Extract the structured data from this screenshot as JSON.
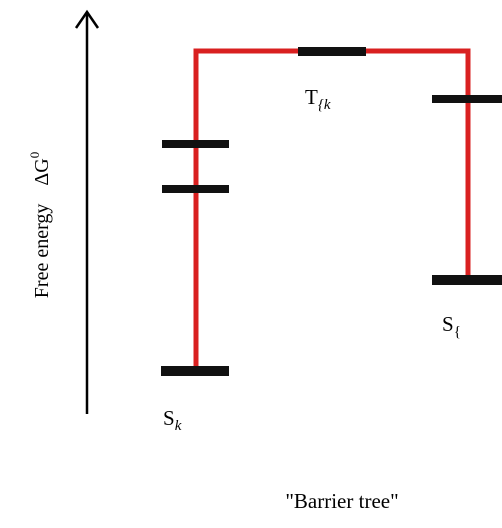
{
  "axis": {
    "label_text": "Free energy",
    "label_symbol": "ΔG",
    "label_superscript": "0"
  },
  "states": {
    "left": {
      "base": "S",
      "sub": "k"
    },
    "saddle": {
      "base": "T",
      "sub": "{k"
    },
    "right": {
      "base": "S",
      "sub": "{"
    }
  },
  "caption": "\"Barrier tree\"",
  "colors": {
    "tree": "#d92020",
    "levels": "#111111",
    "axis": "#000000"
  }
}
